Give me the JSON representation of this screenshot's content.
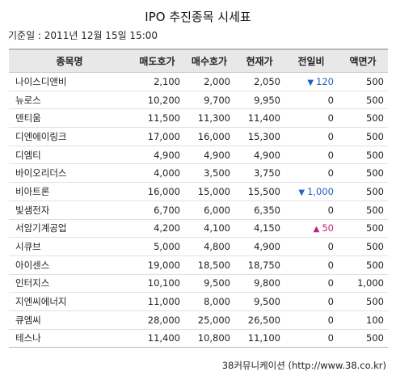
{
  "title": "IPO 추진종목 시세표",
  "base_date": "기준일 : 2011년 12월 15일 15:00",
  "columns": [
    "종목명",
    "매도호가",
    "매수호가",
    "현재가",
    "전일비",
    "액면가"
  ],
  "rows": [
    {
      "name": "나이스디앤비",
      "ask": "2,100",
      "bid": "2,000",
      "price": "2,050",
      "dir": "down",
      "change": "120",
      "par": "500"
    },
    {
      "name": "뉴로스",
      "ask": "10,200",
      "bid": "9,700",
      "price": "9,950",
      "dir": "none",
      "change": "0",
      "par": "500"
    },
    {
      "name": "덴티움",
      "ask": "11,500",
      "bid": "11,300",
      "price": "11,400",
      "dir": "none",
      "change": "0",
      "par": "500"
    },
    {
      "name": "디엔에이링크",
      "ask": "17,000",
      "bid": "16,000",
      "price": "15,300",
      "dir": "none",
      "change": "0",
      "par": "500"
    },
    {
      "name": "디엠티",
      "ask": "4,900",
      "bid": "4,900",
      "price": "4,900",
      "dir": "none",
      "change": "0",
      "par": "500"
    },
    {
      "name": "바이오리더스",
      "ask": "4,000",
      "bid": "3,500",
      "price": "3,750",
      "dir": "none",
      "change": "0",
      "par": "500"
    },
    {
      "name": "비아트론",
      "ask": "16,000",
      "bid": "15,000",
      "price": "15,500",
      "dir": "down",
      "change": "1,000",
      "par": "500"
    },
    {
      "name": "빛샘전자",
      "ask": "6,700",
      "bid": "6,000",
      "price": "6,350",
      "dir": "none",
      "change": "0",
      "par": "500"
    },
    {
      "name": "서암기계공업",
      "ask": "4,200",
      "bid": "4,100",
      "price": "4,150",
      "dir": "up",
      "change": "50",
      "par": "500"
    },
    {
      "name": "시큐브",
      "ask": "5,000",
      "bid": "4,800",
      "price": "4,900",
      "dir": "none",
      "change": "0",
      "par": "500"
    },
    {
      "name": "아이센스",
      "ask": "19,000",
      "bid": "18,500",
      "price": "18,750",
      "dir": "none",
      "change": "0",
      "par": "500"
    },
    {
      "name": "인터지스",
      "ask": "10,100",
      "bid": "9,500",
      "price": "9,800",
      "dir": "none",
      "change": "0",
      "par": "1,000"
    },
    {
      "name": "지엔씨에너지",
      "ask": "11,000",
      "bid": "8,000",
      "price": "9,500",
      "dir": "none",
      "change": "0",
      "par": "500"
    },
    {
      "name": "큐엠씨",
      "ask": "28,000",
      "bid": "25,000",
      "price": "26,500",
      "dir": "none",
      "change": "0",
      "par": "100"
    },
    {
      "name": "테스나",
      "ask": "11,400",
      "bid": "10,800",
      "price": "11,100",
      "dir": "none",
      "change": "0",
      "par": "500"
    }
  ],
  "icons": {
    "down": "down-triangle-icon",
    "up": "up-triangle-icon"
  },
  "colors": {
    "down": "#1f5fbf",
    "up": "#c02080",
    "header_bg": "#e8e8e8"
  },
  "footer": "38커뮤니케이션 (http://www.38.co.kr)"
}
